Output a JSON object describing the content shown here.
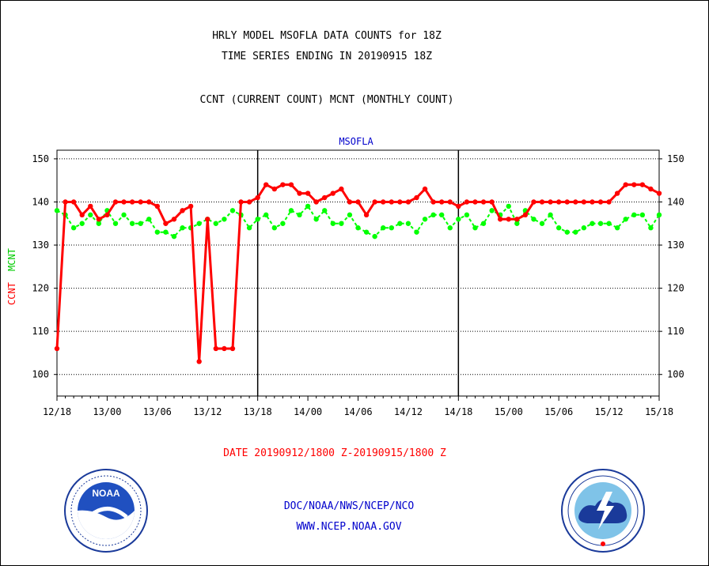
{
  "header": {
    "title_line1": "HRLY MODEL MSOFLA DATA COUNTS for 18Z",
    "title_line2": "TIME SERIES ENDING IN 20190915 18Z",
    "subtitle": "CCNT (CURRENT COUNT) MCNT (MONTHLY COUNT)"
  },
  "footer": {
    "date_range": "DATE 20190912/1800 Z-20190915/1800 Z",
    "org": "DOC/NOAA/NWS/NCEP/NCO",
    "url": "WWW.NCEP.NOAA.GOV"
  },
  "logos": {
    "noaa_text": "NOAA"
  },
  "chart_data": {
    "type": "line",
    "title": "MSOFLA",
    "ylabel_ccnt": "CCNT",
    "ylabel_mcnt": "MCNT",
    "ylim": [
      95,
      152
    ],
    "yticks": [
      100,
      110,
      120,
      130,
      140,
      150
    ],
    "xlim": [
      0,
      72
    ],
    "xticks": [
      {
        "x": 0,
        "label": "12/18"
      },
      {
        "x": 6,
        "label": "13/00"
      },
      {
        "x": 12,
        "label": "13/06"
      },
      {
        "x": 18,
        "label": "13/12"
      },
      {
        "x": 24,
        "label": "13/18"
      },
      {
        "x": 30,
        "label": "14/00"
      },
      {
        "x": 36,
        "label": "14/06"
      },
      {
        "x": 42,
        "label": "14/12"
      },
      {
        "x": 48,
        "label": "14/18"
      },
      {
        "x": 54,
        "label": "15/00"
      },
      {
        "x": 60,
        "label": "15/06"
      },
      {
        "x": 66,
        "label": "15/12"
      },
      {
        "x": 72,
        "label": "15/18"
      }
    ],
    "day_dividers": [
      24,
      48
    ],
    "grid": true,
    "series": [
      {
        "name": "CCNT",
        "color": "#ff0000",
        "values": [
          106,
          140,
          140,
          137,
          139,
          136,
          137,
          140,
          140,
          140,
          140,
          140,
          139,
          135,
          136,
          138,
          139,
          103,
          136,
          106,
          106,
          106,
          140,
          140,
          141,
          144,
          143,
          144,
          144,
          142,
          142,
          140,
          141,
          142,
          143,
          140,
          140,
          137,
          140,
          140,
          140,
          140,
          140,
          141,
          143,
          140,
          140,
          140,
          139,
          140,
          140,
          140,
          140,
          136,
          136,
          136,
          137,
          140,
          140,
          140,
          140,
          140,
          140,
          140,
          140,
          140,
          140,
          142,
          144,
          144,
          144,
          143,
          142
        ]
      },
      {
        "name": "MCNT",
        "color": "#00ff00",
        "values": [
          138,
          137,
          134,
          135,
          137,
          135,
          138,
          135,
          137,
          135,
          135,
          136,
          133,
          133,
          132,
          134,
          134,
          135,
          136,
          135,
          136,
          138,
          137,
          134,
          136,
          137,
          134,
          135,
          138,
          137,
          139,
          136,
          138,
          135,
          135,
          137,
          134,
          133,
          132,
          134,
          134,
          135,
          135,
          133,
          136,
          137,
          137,
          134,
          136,
          137,
          134,
          135,
          138,
          137,
          139,
          135,
          138,
          136,
          135,
          137,
          134,
          133,
          133,
          134,
          135,
          135,
          135,
          134,
          136,
          137,
          137,
          134,
          137
        ]
      }
    ]
  }
}
